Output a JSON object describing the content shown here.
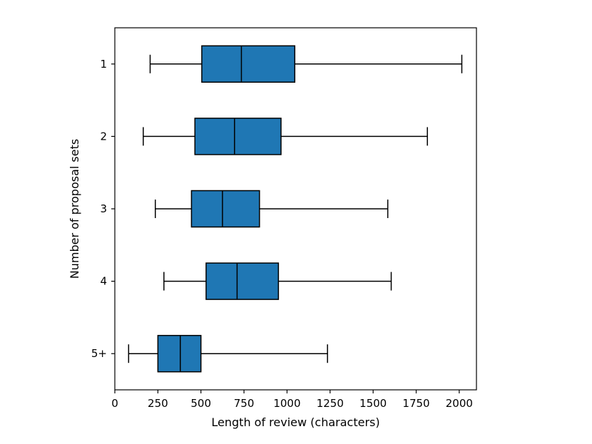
{
  "chart_data": {
    "type": "boxplot",
    "orientation": "horizontal",
    "xlabel": "Length of review (characters)",
    "ylabel": "Number of proposal sets",
    "xlim": [
      0,
      2100
    ],
    "xticks": [
      0,
      250,
      500,
      750,
      1000,
      1250,
      1500,
      1750,
      2000
    ],
    "grid": false,
    "box_color": "#1f77b4",
    "line_color": "#000000",
    "categories": [
      "1",
      "2",
      "3",
      "4",
      "5+"
    ],
    "boxes": [
      {
        "label": "1",
        "whisker_low": 205,
        "q1": 505,
        "median": 735,
        "q3": 1045,
        "whisker_high": 2015
      },
      {
        "label": "2",
        "whisker_low": 165,
        "q1": 465,
        "median": 695,
        "q3": 965,
        "whisker_high": 1815
      },
      {
        "label": "3",
        "whisker_low": 235,
        "q1": 445,
        "median": 625,
        "q3": 840,
        "whisker_high": 1585
      },
      {
        "label": "4",
        "whisker_low": 285,
        "q1": 530,
        "median": 710,
        "q3": 950,
        "whisker_high": 1605
      },
      {
        "label": "5+",
        "whisker_low": 80,
        "q1": 250,
        "median": 380,
        "q3": 500,
        "whisker_high": 1235
      }
    ]
  }
}
